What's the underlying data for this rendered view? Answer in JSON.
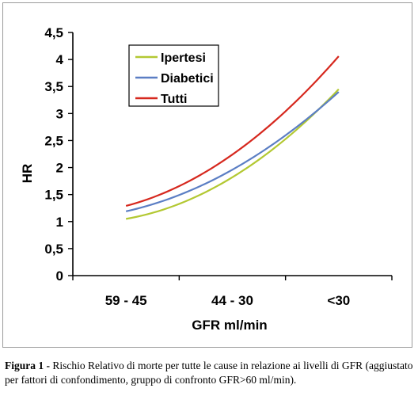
{
  "chart_data": {
    "type": "line",
    "categories": [
      "59 - 45",
      "44 - 30",
      "<30"
    ],
    "xlabel": "GFR ml/min",
    "ylabel": "HR",
    "ylim": [
      0,
      4.5
    ],
    "yticks": [
      "0",
      "0,5",
      "1",
      "1,5",
      "2",
      "2,5",
      "3",
      "3,5",
      "4",
      "4,5"
    ],
    "grid": false,
    "legend_position": "top-left",
    "series": [
      {
        "name": "Ipertesi",
        "color": "#b3c832",
        "values": [
          1.05,
          1.82,
          3.45
        ]
      },
      {
        "name": "Diabetici",
        "color": "#5b7ec4",
        "values": [
          1.19,
          1.96,
          3.4
        ]
      },
      {
        "name": "Tutti",
        "color": "#d6281e",
        "values": [
          1.29,
          2.24,
          4.06
        ]
      }
    ]
  },
  "caption": {
    "label": "Figura 1 -",
    "text": " Rischio Relativo di morte per tutte le cause in relazione ai livelli di GFR (aggiustato per fattori di confondimento, gruppo di confronto GFR>60 ml/min)."
  }
}
